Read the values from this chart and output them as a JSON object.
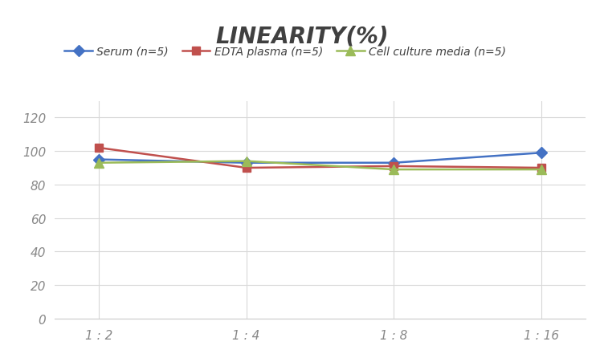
{
  "title": "LINEARITY(%)",
  "x_labels": [
    "1 : 2",
    "1 : 4",
    "1 : 8",
    "1 : 16"
  ],
  "series": [
    {
      "label": "Serum (n=5)",
      "values": [
        95,
        93,
        93,
        99
      ],
      "color": "#4472C4",
      "marker": "D",
      "marker_size": 7,
      "linewidth": 1.8
    },
    {
      "label": "EDTA plasma (n=5)",
      "values": [
        102,
        90,
        91,
        90
      ],
      "color": "#C0504D",
      "marker": "s",
      "marker_size": 7,
      "linewidth": 1.8
    },
    {
      "label": "Cell culture media (n=5)",
      "values": [
        93,
        94,
        89,
        89
      ],
      "color": "#9BBB59",
      "marker": "^",
      "marker_size": 8,
      "linewidth": 1.8
    }
  ],
  "ylim": [
    0,
    130
  ],
  "yticks": [
    0,
    20,
    40,
    60,
    80,
    100,
    120
  ],
  "background_color": "#ffffff",
  "grid_color": "#d8d8d8",
  "title_fontsize": 20,
  "legend_fontsize": 10,
  "tick_fontsize": 11,
  "tick_color": "#888888"
}
